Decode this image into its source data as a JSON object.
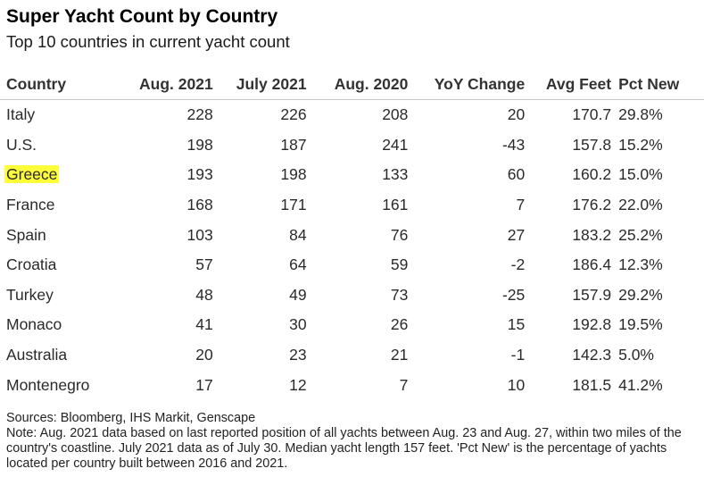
{
  "title": "Super Yacht Count by Country",
  "subtitle": "Top 10 countries in current yacht count",
  "headers": [
    "Country",
    "Aug. 2021",
    "July 2021",
    "Aug. 2020",
    "YoY Change",
    "Avg Feet",
    "Pct New"
  ],
  "highlight_color": "#ffff3a",
  "chart_data": {
    "type": "table",
    "title": "Super Yacht Count by Country",
    "subtitle": "Top 10 countries in current yacht count",
    "columns": [
      "Country",
      "Aug. 2021",
      "July 2021",
      "Aug. 2020",
      "YoY Change",
      "Avg Feet",
      "Pct New"
    ],
    "highlighted_row": "Greece",
    "rows": [
      [
        "Italy",
        "228",
        "226",
        "208",
        "20",
        "170.7",
        "29.8%"
      ],
      [
        "U.S.",
        "198",
        "187",
        "241",
        "-43",
        "157.8",
        "15.2%"
      ],
      [
        "Greece",
        "193",
        "198",
        "133",
        "60",
        "160.2",
        "15.0%"
      ],
      [
        "France",
        "168",
        "171",
        "161",
        "7",
        "176.2",
        "22.0%"
      ],
      [
        "Spain",
        "103",
        "84",
        "76",
        "27",
        "183.2",
        "25.2%"
      ],
      [
        "Croatia",
        "57",
        "64",
        "59",
        "-2",
        "186.4",
        "12.3%"
      ],
      [
        "Turkey",
        "48",
        "49",
        "73",
        "-25",
        "157.9",
        "29.2%"
      ],
      [
        "Monaco",
        "41",
        "30",
        "26",
        "15",
        "192.8",
        "19.5%"
      ],
      [
        "Australia",
        "20",
        "23",
        "21",
        "-1",
        "142.3",
        "5.0%"
      ],
      [
        "Montenegro",
        "17",
        "12",
        "7",
        "10",
        "181.5",
        "41.2%"
      ]
    ]
  },
  "sources": "Sources: Bloomberg, IHS Markit, Genscape",
  "note": "Note: Aug. 2021 data based on last reported position of all yachts between Aug. 23 and Aug. 27, within two miles of the country's coastline. July 2021 data as of July 30. Median yacht length 157 feet. 'Pct New' is the percentage of yachts located per country built between 2016 and 2021."
}
